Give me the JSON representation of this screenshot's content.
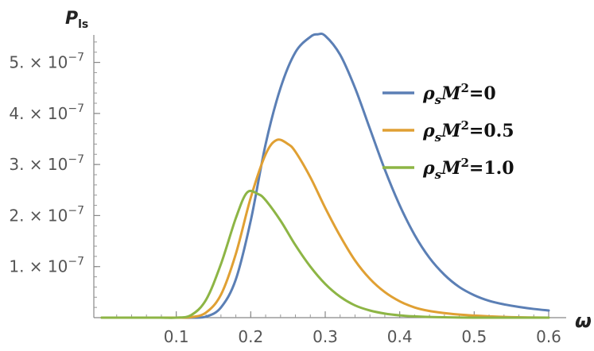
{
  "chart_data": {
    "type": "line",
    "xlabel": "ω",
    "ylabel_main": "P",
    "ylabel_sub": "ls",
    "xlim": [
      0.0,
      0.6
    ],
    "ylim": [
      0,
      5.6e-07
    ],
    "grid": false,
    "legend_position": "top-right",
    "x_ticks": [
      {
        "value": 0.1,
        "label": "0.1"
      },
      {
        "value": 0.2,
        "label": "0.2"
      },
      {
        "value": 0.3,
        "label": "0.3"
      },
      {
        "value": 0.4,
        "label": "0.4"
      },
      {
        "value": 0.5,
        "label": "0.5"
      },
      {
        "value": 0.6,
        "label": "0.6"
      }
    ],
    "y_ticks": [
      {
        "value": 1e-07,
        "mantissa": "1. × 10",
        "exponent": "−7"
      },
      {
        "value": 2e-07,
        "mantissa": "2. × 10",
        "exponent": "−7"
      },
      {
        "value": 3e-07,
        "mantissa": "3. × 10",
        "exponent": "−7"
      },
      {
        "value": 4e-07,
        "mantissa": "4. × 10",
        "exponent": "−7"
      },
      {
        "value": 5e-07,
        "mantissa": "5. × 10",
        "exponent": "−7"
      }
    ],
    "series": [
      {
        "name": "ρsM²=0",
        "legend": {
          "rho": "ρ",
          "sub": "s",
          "m": "M",
          "sup": "2",
          "tail": "=0"
        },
        "color": "#5b7fb5",
        "x": [
          0.0,
          0.05,
          0.08,
          0.1,
          0.12,
          0.14,
          0.16,
          0.18,
          0.2,
          0.22,
          0.24,
          0.26,
          0.28,
          0.29,
          0.3,
          0.32,
          0.34,
          0.36,
          0.38,
          0.4,
          0.42,
          0.44,
          0.46,
          0.48,
          0.5,
          0.52,
          0.54,
          0.56,
          0.58,
          0.6
        ],
        "y": [
          0,
          0,
          0,
          0,
          0,
          2e-09,
          2e-08,
          7.5e-08,
          1.9e-07,
          3.4e-07,
          4.5e-07,
          5.2e-07,
          5.5e-07,
          5.55e-07,
          5.52e-07,
          5.15e-07,
          4.5e-07,
          3.7e-07,
          2.9e-07,
          2.2e-07,
          1.62e-07,
          1.17e-07,
          8.4e-08,
          6e-08,
          4.4e-08,
          3.3e-08,
          2.6e-08,
          2.1e-08,
          1.7e-08,
          1.4e-08
        ]
      },
      {
        "name": "ρsM²=0.5",
        "legend": {
          "rho": "ρ",
          "sub": "s",
          "m": "M",
          "sup": "2",
          "tail": "=0.5"
        },
        "color": "#e0a033",
        "x": [
          0.0,
          0.05,
          0.08,
          0.1,
          0.12,
          0.14,
          0.16,
          0.18,
          0.2,
          0.22,
          0.235,
          0.25,
          0.26,
          0.28,
          0.3,
          0.32,
          0.34,
          0.36,
          0.38,
          0.4,
          0.42,
          0.44,
          0.46,
          0.48,
          0.5,
          0.52,
          0.55,
          0.6
        ],
        "y": [
          0,
          0,
          0,
          0,
          1e-09,
          1e-08,
          4.5e-08,
          1.25e-07,
          2.35e-07,
          3.2e-07,
          3.48e-07,
          3.4e-07,
          3.25e-07,
          2.75e-07,
          2.15e-07,
          1.6e-07,
          1.12e-07,
          7.6e-08,
          5e-08,
          3.2e-08,
          2e-08,
          1.3e-08,
          9e-09,
          6e-09,
          4e-09,
          2.5e-09,
          1e-09,
          0
        ]
      },
      {
        "name": "ρsM²=1.0",
        "legend": {
          "rho": "ρ",
          "sub": "s",
          "m": "M",
          "sup": "2",
          "tail": "=1.0"
        },
        "color": "#8db545",
        "x": [
          0.0,
          0.05,
          0.08,
          0.1,
          0.12,
          0.14,
          0.16,
          0.18,
          0.195,
          0.21,
          0.22,
          0.24,
          0.26,
          0.28,
          0.3,
          0.32,
          0.34,
          0.36,
          0.38,
          0.4,
          0.42,
          0.45,
          0.5,
          0.55,
          0.6
        ],
        "y": [
          0,
          0,
          0,
          0,
          5e-09,
          3.5e-08,
          1.05e-07,
          1.95e-07,
          2.45e-07,
          2.42e-07,
          2.3e-07,
          1.9e-07,
          1.42e-07,
          1e-07,
          6.6e-08,
          4.1e-08,
          2.4e-08,
          1.4e-08,
          8e-09,
          4.5e-09,
          2.5e-09,
          1e-09,
          0,
          0,
          0
        ]
      }
    ]
  }
}
